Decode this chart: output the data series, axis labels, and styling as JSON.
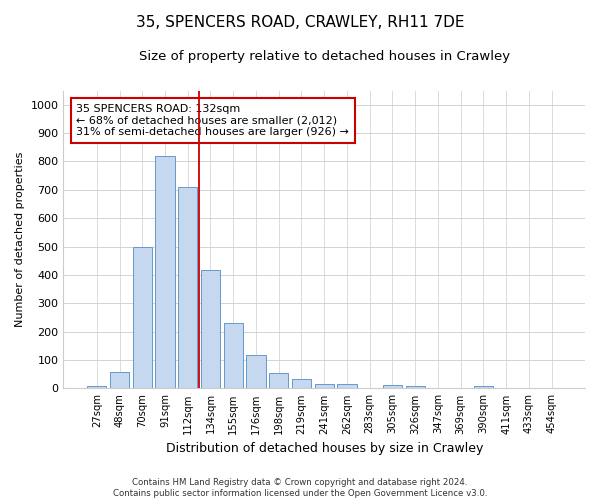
{
  "title": "35, SPENCERS ROAD, CRAWLEY, RH11 7DE",
  "subtitle": "Size of property relative to detached houses in Crawley",
  "xlabel": "Distribution of detached houses by size in Crawley",
  "ylabel": "Number of detached properties",
  "footer_line1": "Contains HM Land Registry data © Crown copyright and database right 2024.",
  "footer_line2": "Contains public sector information licensed under the Open Government Licence v3.0.",
  "categories": [
    "27sqm",
    "48sqm",
    "70sqm",
    "91sqm",
    "112sqm",
    "134sqm",
    "155sqm",
    "176sqm",
    "198sqm",
    "219sqm",
    "241sqm",
    "262sqm",
    "283sqm",
    "305sqm",
    "326sqm",
    "347sqm",
    "369sqm",
    "390sqm",
    "411sqm",
    "433sqm",
    "454sqm"
  ],
  "bar_values": [
    8,
    57,
    500,
    820,
    710,
    418,
    230,
    118,
    55,
    32,
    15,
    15,
    0,
    12,
    8,
    0,
    0,
    8,
    0,
    0,
    0
  ],
  "bar_color": "#c5d8f0",
  "bar_edge_color": "#6699cc",
  "vline_color": "#cc0000",
  "vline_x_index": 5,
  "annotation_text": "35 SPENCERS ROAD: 132sqm\n← 68% of detached houses are smaller (2,012)\n31% of semi-detached houses are larger (926) →",
  "annotation_box_facecolor": "#ffffff",
  "annotation_box_edgecolor": "#cc0000",
  "ylim": [
    0,
    1050
  ],
  "yticks": [
    0,
    100,
    200,
    300,
    400,
    500,
    600,
    700,
    800,
    900,
    1000
  ],
  "grid_color": "#cccccc",
  "bg_color": "#ffffff",
  "plot_bg_color": "#ffffff",
  "title_fontsize": 11,
  "subtitle_fontsize": 9.5,
  "ylabel_fontsize": 8,
  "xlabel_fontsize": 9
}
